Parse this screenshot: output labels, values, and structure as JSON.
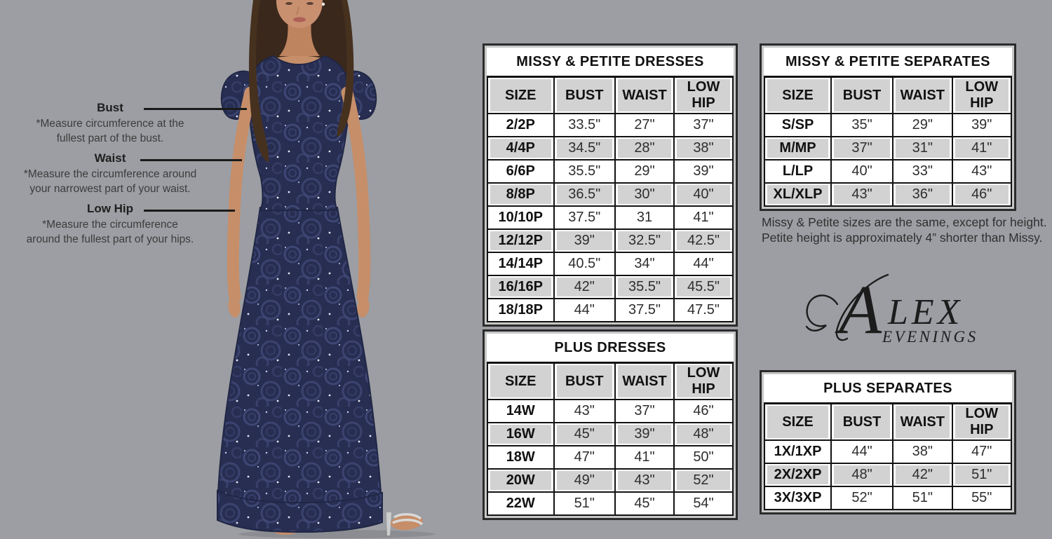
{
  "colors": {
    "background": "#9C9EA3",
    "table_row_gray": "#D2D2D2",
    "grid_black": "#131313",
    "dress_navy": "#272E52",
    "logo_black": "#1C1C1C"
  },
  "measurement_guide": {
    "items": [
      {
        "label": "Bust",
        "desc_line1": "*Measure circumference at the",
        "desc_line2": "fullest part of the bust."
      },
      {
        "label": "Waist",
        "desc_line1": "*Measure the circumference around",
        "desc_line2": "your narrowest part of your waist."
      },
      {
        "label": "Low Hip",
        "desc_line1": "*Measure the circumference",
        "desc_line2": "around the fullest part of your hips."
      }
    ]
  },
  "tables": {
    "missy_petite_dresses": {
      "title": "MISSY & PETITE DRESSES",
      "headers": [
        "SIZE",
        "BUST",
        "WAIST",
        "LOW HIP"
      ],
      "rows": [
        [
          "2/2P",
          "33.5\"",
          "27\"",
          "37\""
        ],
        [
          "4/4P",
          "34.5\"",
          "28\"",
          "38\""
        ],
        [
          "6/6P",
          "35.5\"",
          "29\"",
          "39\""
        ],
        [
          "8/8P",
          "36.5\"",
          "30\"",
          "40\""
        ],
        [
          "10/10P",
          "37.5\"",
          "31",
          "41\""
        ],
        [
          "12/12P",
          "39\"",
          "32.5\"",
          "42.5\""
        ],
        [
          "14/14P",
          "40.5\"",
          "34\"",
          "44\""
        ],
        [
          "16/16P",
          "42\"",
          "35.5\"",
          "45.5\""
        ],
        [
          "18/18P",
          "44\"",
          "37.5\"",
          "47.5\""
        ]
      ]
    },
    "missy_petite_separates": {
      "title": "MISSY & PETITE SEPARATES",
      "headers": [
        "SIZE",
        "BUST",
        "WAIST",
        "LOW HIP"
      ],
      "rows": [
        [
          "S/SP",
          "35\"",
          "29\"",
          "39\""
        ],
        [
          "M/MP",
          "37\"",
          "31\"",
          "41\""
        ],
        [
          "L/LP",
          "40\"",
          "33\"",
          "43\""
        ],
        [
          "XL/XLP",
          "43\"",
          "36\"",
          "46\""
        ]
      ]
    },
    "plus_dresses": {
      "title": "PLUS DRESSES",
      "headers": [
        "SIZE",
        "BUST",
        "WAIST",
        "LOW HIP"
      ],
      "rows": [
        [
          "14W",
          "43\"",
          "37\"",
          "46\""
        ],
        [
          "16W",
          "45\"",
          "39\"",
          "48\""
        ],
        [
          "18W",
          "47\"",
          "41\"",
          "50\""
        ],
        [
          "20W",
          "49\"",
          "43\"",
          "52\""
        ],
        [
          "22W",
          "51\"",
          "45\"",
          "54\""
        ]
      ]
    },
    "plus_separates": {
      "title": "PLUS SEPARATES",
      "headers": [
        "SIZE",
        "BUST",
        "WAIST",
        "LOW HIP"
      ],
      "rows": [
        [
          "1X/1XP",
          "44\"",
          "38\"",
          "47\""
        ],
        [
          "2X/2XP",
          "48\"",
          "42\"",
          "51\""
        ],
        [
          "3X/3XP",
          "52\"",
          "51\"",
          "55\""
        ]
      ]
    }
  },
  "note": {
    "line1": "Missy & Petite sizes are the same, except for height.",
    "line2": "Petite height is approximately 4” shorter than Missy."
  },
  "logo": {
    "initial": "A",
    "rest": "LEX",
    "subtitle": "EVENINGS"
  }
}
